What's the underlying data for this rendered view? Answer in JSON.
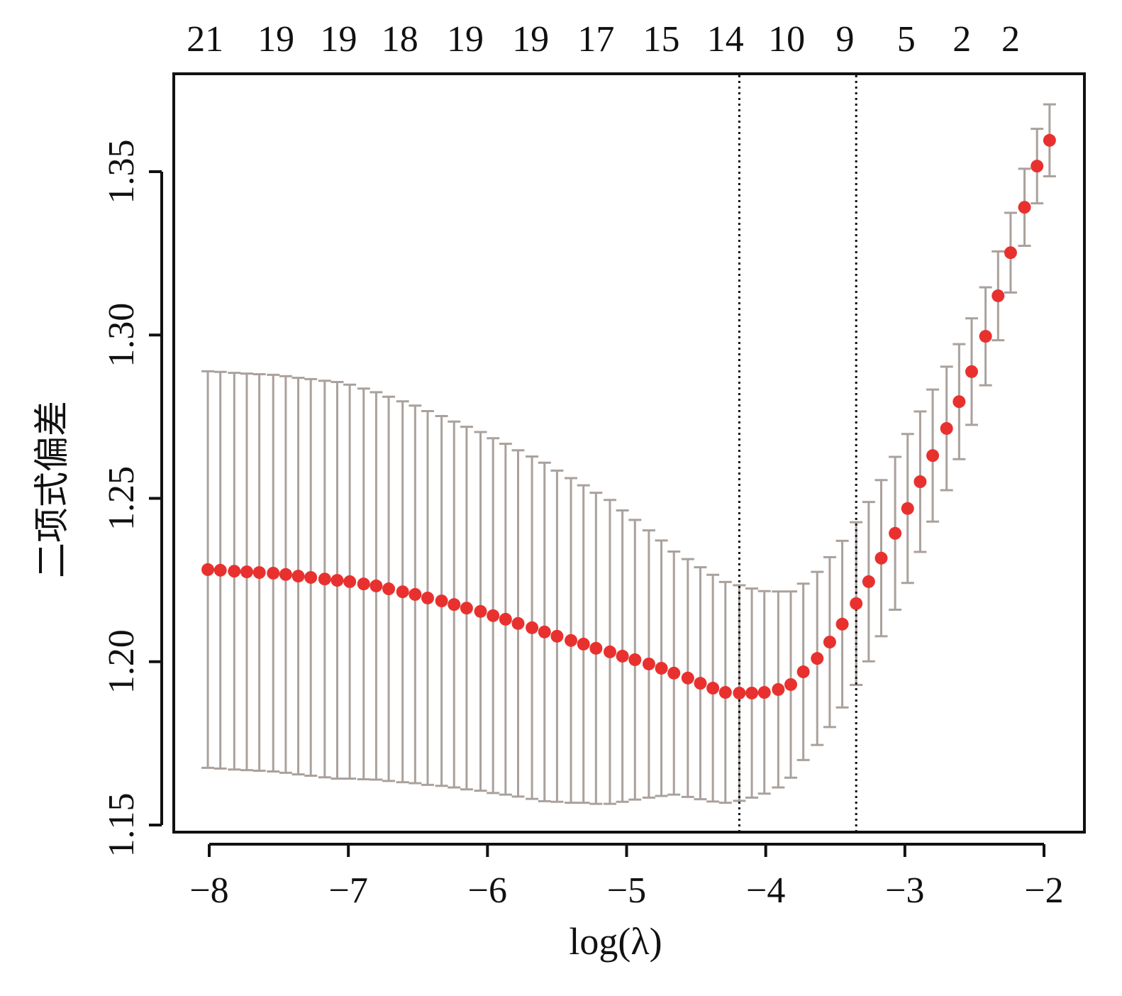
{
  "chart_data": {
    "type": "scatter",
    "subtype": "cv-error-bars",
    "xlabel": "log(λ)",
    "ylabel": "二项式偏差",
    "xlim": [
      -8.25,
      -1.7
    ],
    "ylim": [
      1.148,
      1.379
    ],
    "xticks": [
      -8,
      -7,
      -6,
      -5,
      -4,
      -3,
      -2
    ],
    "xtick_labels": [
      "−8",
      "−7",
      "−6",
      "−5",
      "−4",
      "−3",
      "−2"
    ],
    "yticks": [
      1.15,
      1.2,
      1.25,
      1.3,
      1.35
    ],
    "ytick_labels": [
      "1.15",
      "1.20",
      "1.25",
      "1.30",
      "1.35"
    ],
    "top_axis": {
      "positions": [
        -8.03,
        -7.52,
        -7.07,
        -6.63,
        -6.16,
        -5.69,
        -5.22,
        -4.75,
        -4.29,
        -3.85,
        -3.43,
        -2.99,
        -2.59,
        -2.24
      ],
      "labels": [
        "21",
        "19",
        "19",
        "18",
        "19",
        "19",
        "17",
        "15",
        "14",
        "10",
        "9",
        "5",
        "2",
        "2"
      ]
    },
    "vlines": [
      -4.19,
      -3.35
    ],
    "x": [
      -8.01,
      -7.92,
      -7.82,
      -7.73,
      -7.64,
      -7.54,
      -7.45,
      -7.36,
      -7.27,
      -7.17,
      -7.08,
      -6.99,
      -6.89,
      -6.8,
      -6.71,
      -6.61,
      -6.52,
      -6.43,
      -6.33,
      -6.24,
      -6.15,
      -6.05,
      -5.96,
      -5.87,
      -5.78,
      -5.68,
      -5.59,
      -5.5,
      -5.4,
      -5.31,
      -5.22,
      -5.12,
      -5.03,
      -4.94,
      -4.84,
      -4.75,
      -4.66,
      -4.56,
      -4.47,
      -4.38,
      -4.29,
      -4.19,
      -4.1,
      -4.01,
      -3.91,
      -3.82,
      -3.73,
      -3.63,
      -3.54,
      -3.45,
      -3.35,
      -3.26,
      -3.17,
      -3.07,
      -2.98,
      -2.89,
      -2.8,
      -2.7,
      -2.61,
      -2.52,
      -2.42,
      -2.33,
      -2.24,
      -2.14,
      -2.05,
      -1.96
    ],
    "y": [
      1.2282,
      1.228,
      1.2277,
      1.2275,
      1.2273,
      1.2271,
      1.2267,
      1.2262,
      1.2258,
      1.2253,
      1.2249,
      1.2245,
      1.2238,
      1.2232,
      1.2223,
      1.2214,
      1.2206,
      1.2195,
      1.2186,
      1.2175,
      1.2164,
      1.2154,
      1.2141,
      1.213,
      1.2117,
      1.2104,
      1.2091,
      1.2078,
      1.2065,
      1.2054,
      1.2041,
      1.203,
      1.2017,
      1.2006,
      1.1993,
      1.198,
      1.1965,
      1.195,
      1.1934,
      1.1919,
      1.1906,
      1.1904,
      1.1904,
      1.1906,
      1.1915,
      1.193,
      1.1969,
      1.201,
      1.206,
      1.2115,
      1.2178,
      1.2245,
      1.2317,
      1.2393,
      1.2469,
      1.2551,
      1.2631,
      1.2714,
      1.2796,
      1.2888,
      1.2996,
      1.312,
      1.3252,
      1.3391,
      1.3517,
      1.3596
    ],
    "se": [
      0.0607,
      0.0607,
      0.0607,
      0.0607,
      0.0607,
      0.0607,
      0.0607,
      0.0607,
      0.0607,
      0.0607,
      0.0607,
      0.0603,
      0.0598,
      0.0593,
      0.0588,
      0.0583,
      0.0578,
      0.0572,
      0.0566,
      0.056,
      0.0555,
      0.0549,
      0.0543,
      0.0537,
      0.053,
      0.0524,
      0.0518,
      0.0507,
      0.0497,
      0.0486,
      0.0476,
      0.0465,
      0.0446,
      0.0428,
      0.0409,
      0.0391,
      0.0372,
      0.0364,
      0.0355,
      0.0347,
      0.0338,
      0.033,
      0.032,
      0.031,
      0.03,
      0.0285,
      0.027,
      0.0265,
      0.026,
      0.0255,
      0.0249,
      0.0244,
      0.0239,
      0.0234,
      0.0228,
      0.0215,
      0.0202,
      0.0189,
      0.0176,
      0.0163,
      0.015,
      0.0136,
      0.0122,
      0.0118,
      0.0114,
      0.011
    ],
    "colors": {
      "point": "#e8312f",
      "errorbar": "#aaa19c",
      "vline": "#111111",
      "axis": "#111111"
    },
    "grid": false
  }
}
